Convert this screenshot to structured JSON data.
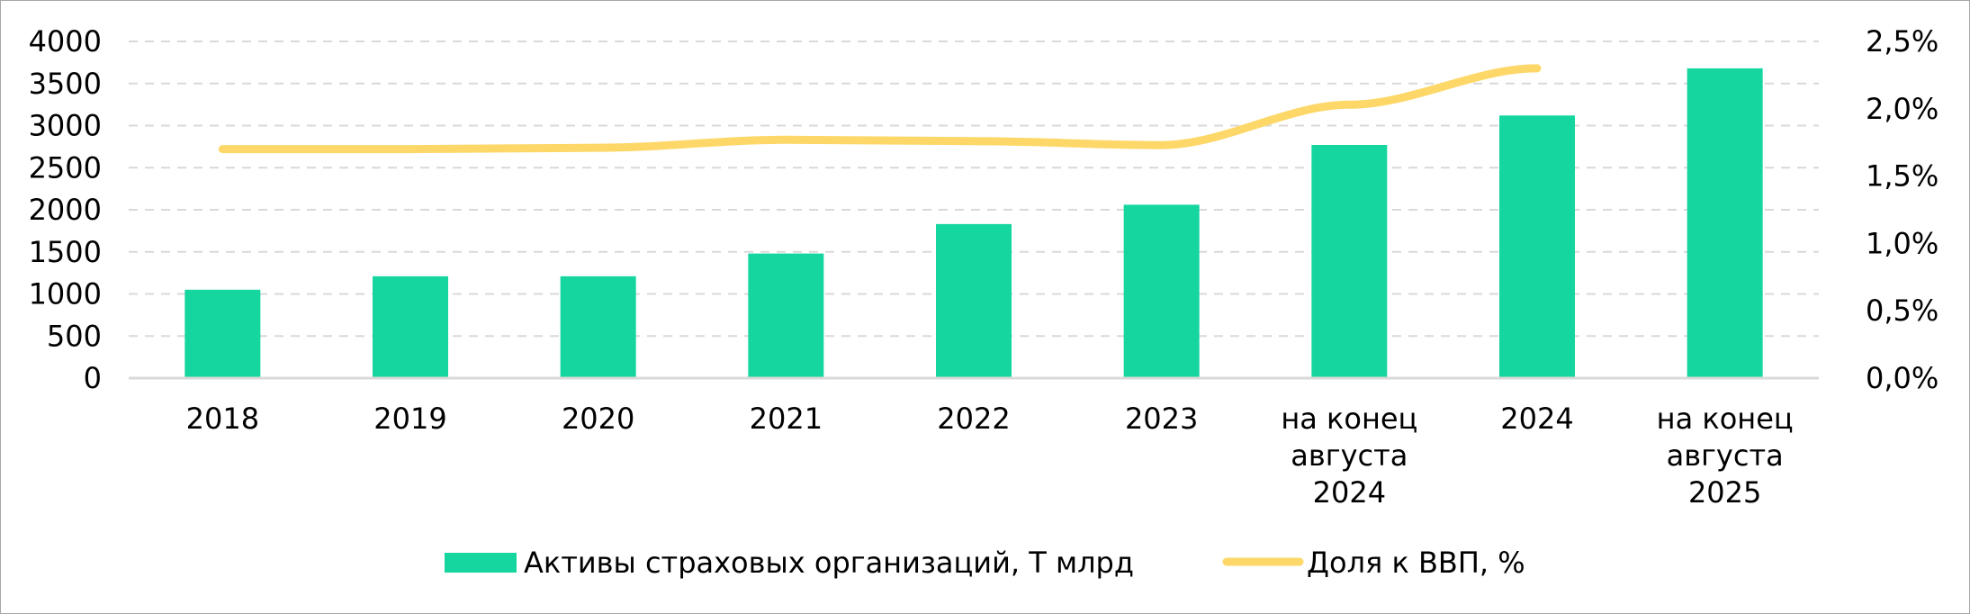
{
  "chart_data": {
    "type": "bar",
    "categories": [
      [
        "2018"
      ],
      [
        "2019"
      ],
      [
        "2020"
      ],
      [
        "2021"
      ],
      [
        "2022"
      ],
      [
        "2023"
      ],
      [
        "на конец",
        "августа",
        "2024"
      ],
      [
        "2024"
      ],
      [
        "на конец",
        "августа",
        "2025"
      ]
    ],
    "series": [
      {
        "name": "Активы страховых организаций, Т млрд",
        "type": "bar",
        "axis": "left",
        "color": "#15d69f",
        "values": [
          1050,
          1210,
          1210,
          1480,
          1830,
          2060,
          2770,
          3120,
          3680
        ]
      },
      {
        "name": "Доля к ВВП, %",
        "type": "line",
        "axis": "right",
        "color": "#fdd869",
        "values": [
          1.7,
          1.7,
          1.71,
          1.77,
          1.76,
          1.73,
          2.03,
          2.3,
          null
        ]
      }
    ],
    "y_left": {
      "min": 0,
      "max": 4000,
      "ticks": [
        "0",
        "500",
        "1000",
        "1500",
        "2000",
        "2500",
        "3000",
        "3500",
        "4000"
      ]
    },
    "y_right": {
      "min": 0,
      "max": 2.5,
      "ticks": [
        "0,0%",
        "0,5%",
        "1,0%",
        "1,5%",
        "2,0%",
        "2,5%"
      ]
    },
    "grid": true,
    "legend_position": "bottom",
    "title": "",
    "xlabel": "",
    "ylabel": ""
  }
}
